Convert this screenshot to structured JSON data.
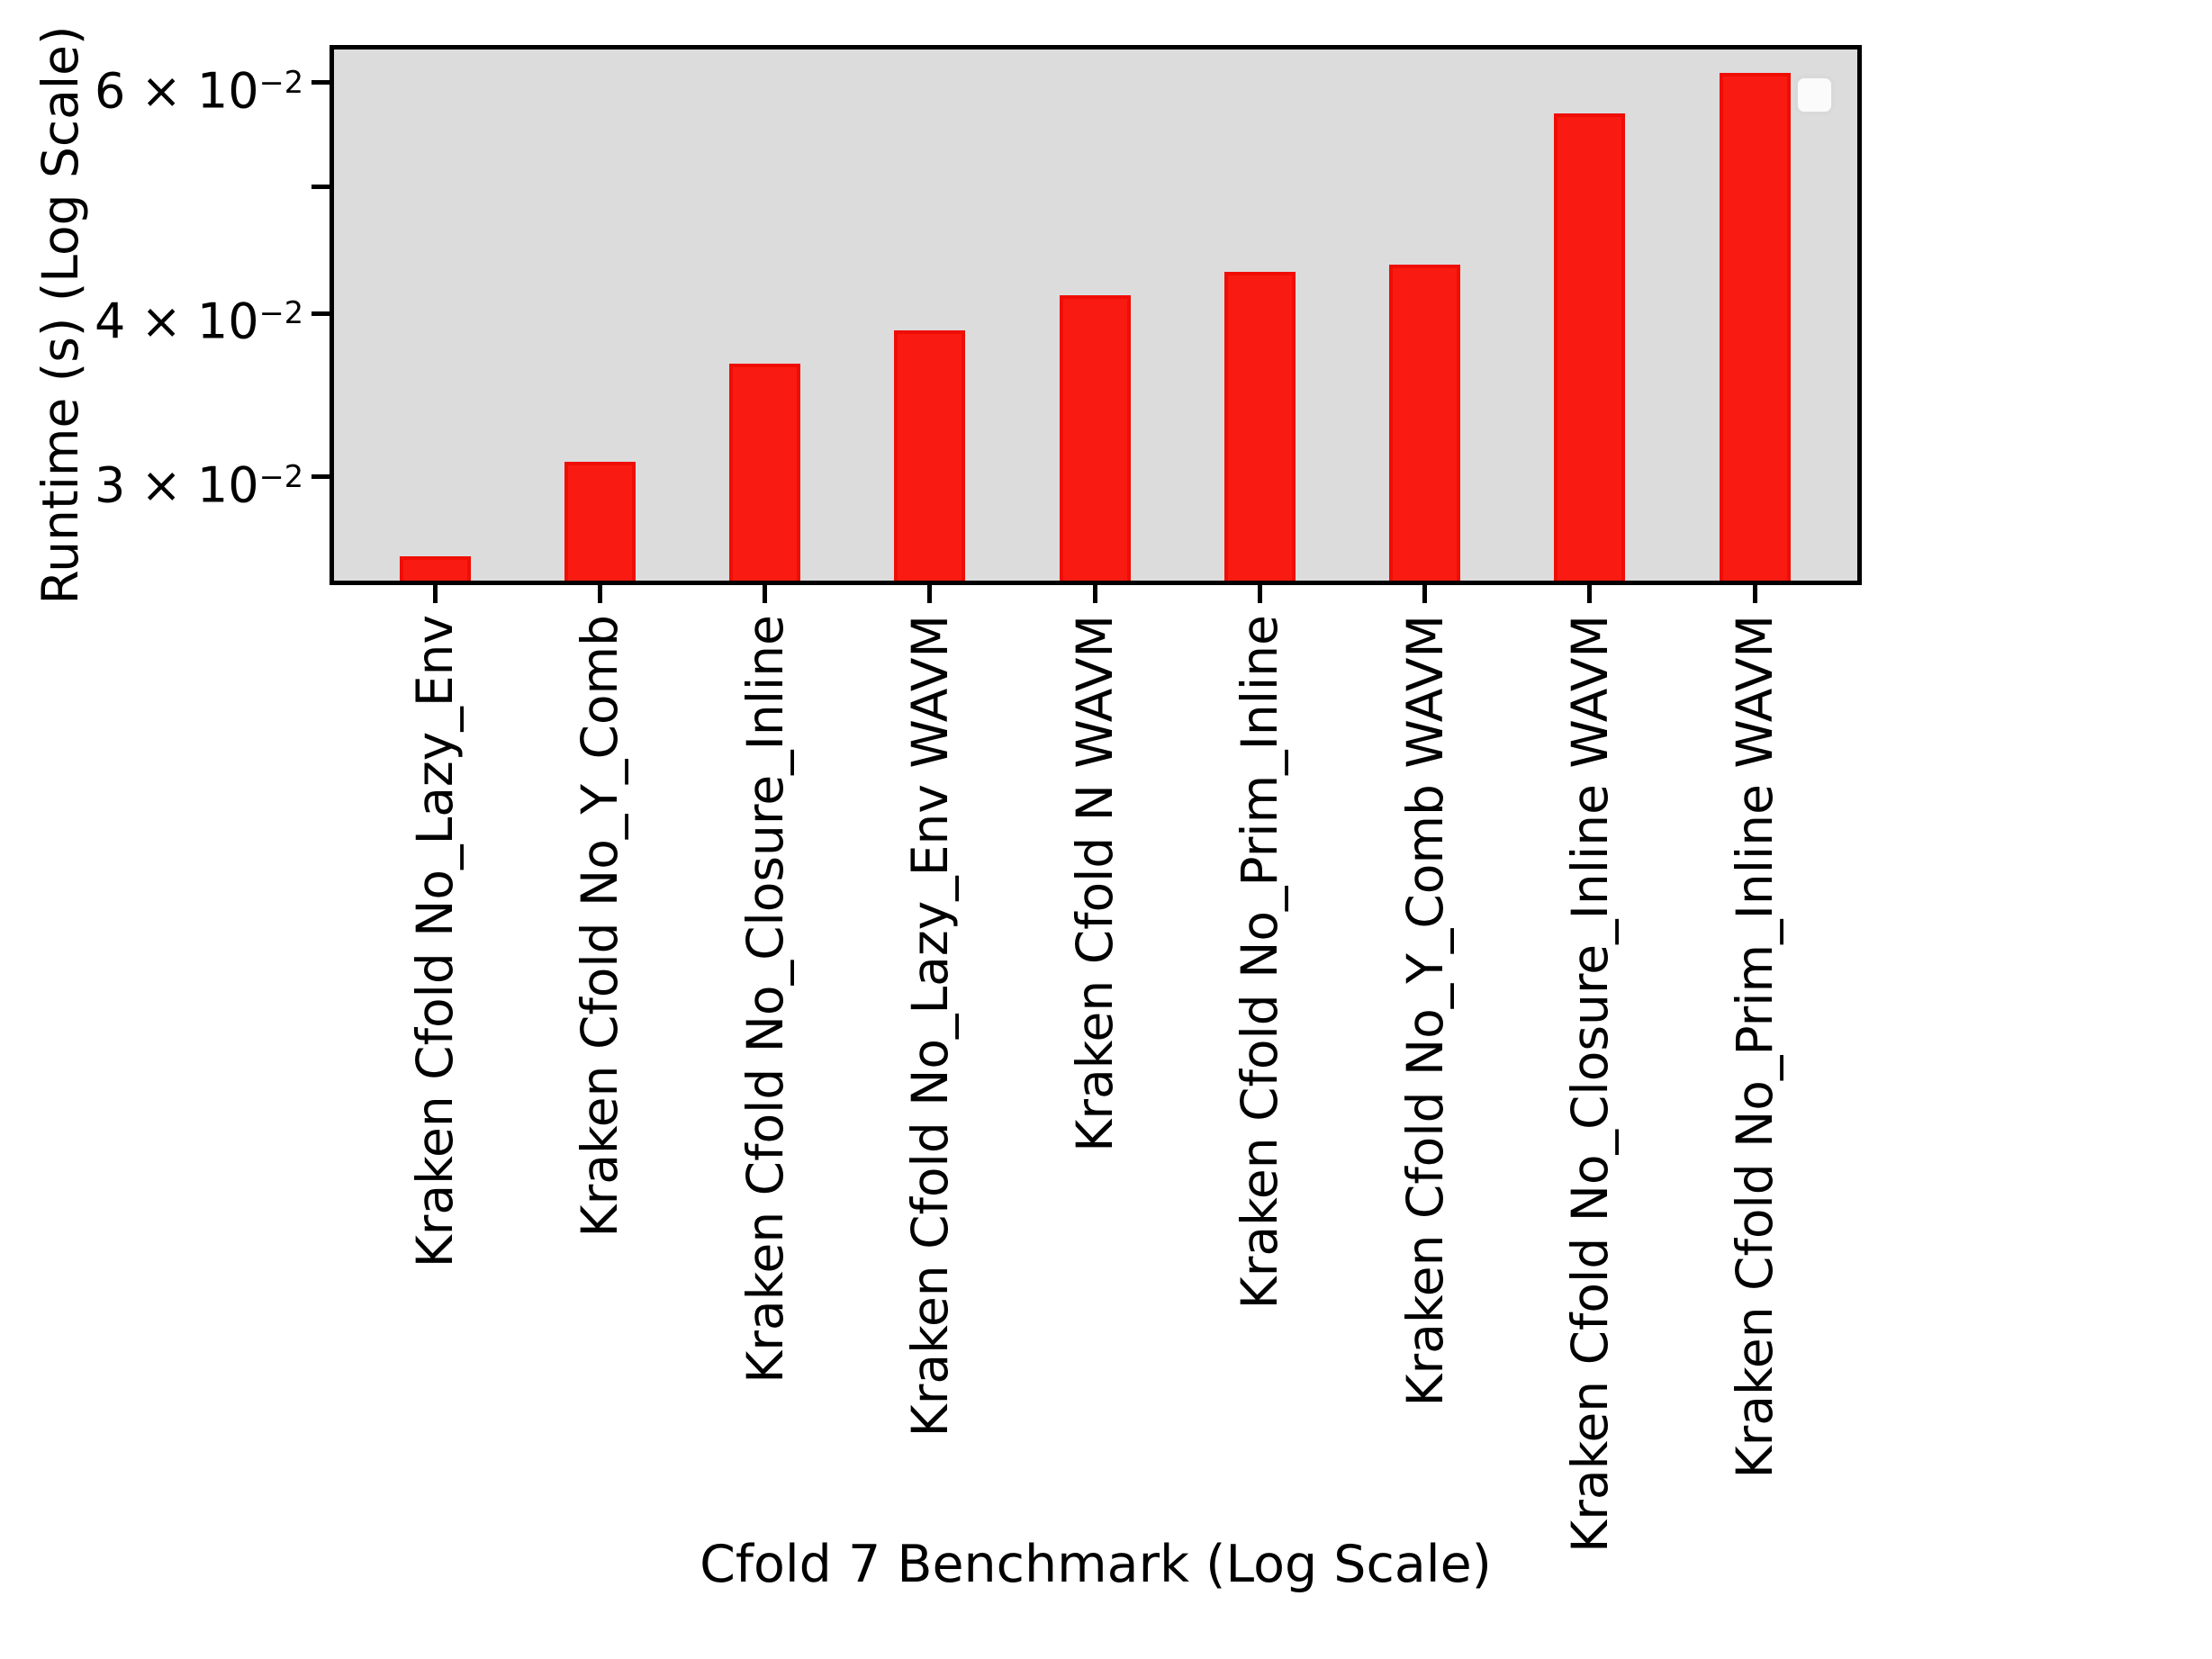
{
  "chart_data": {
    "type": "bar",
    "title": "",
    "xlabel": "Cfold 7 Benchmark (Log Scale)",
    "ylabel": "Runtime (s) (Log Scale)",
    "yscale": "log",
    "ylim": [
      0.025,
      0.0636
    ],
    "grid": false,
    "categories": [
      "Kraken Cfold No_Lazy_Env",
      "Kraken Cfold No_Y_Comb",
      "Kraken Cfold No_Closure_Inline",
      "Kraken Cfold No_Lazy_Env WAVM",
      "Kraken Cfold N WAVM",
      "Kraken Cfold No_Prim_Inline",
      "Kraken Cfold No_Y_Comb WAVM",
      "Kraken Cfold No_Closure_Inline WAVM",
      "Kraken Cfold No_Prim_Inline WAVM"
    ],
    "values": [
      0.0261,
      0.0308,
      0.0366,
      0.0388,
      0.0413,
      0.043,
      0.0436,
      0.0568,
      0.061
    ],
    "yticks": [
      {
        "value": 0.06,
        "label_coef": "6 × 10",
        "label_exp": "−2"
      },
      {
        "value": 0.05,
        "label_coef": "",
        "label_exp": ""
      },
      {
        "value": 0.04,
        "label_coef": "4 × 10",
        "label_exp": "−2"
      },
      {
        "value": 0.03,
        "label_coef": "3 × 10",
        "label_exp": "−2"
      }
    ],
    "legend": {
      "visible": true,
      "entries": [],
      "position": "upper right"
    },
    "colors": {
      "bar_fill": "#f91b11",
      "bar_edge": "#ef0d04",
      "plot_background": "#dcdcdc",
      "axis": "#000000",
      "figure_background": "#ffffff",
      "legend_fill": "#fbfbfb",
      "legend_border": "#d9d9d9"
    }
  }
}
